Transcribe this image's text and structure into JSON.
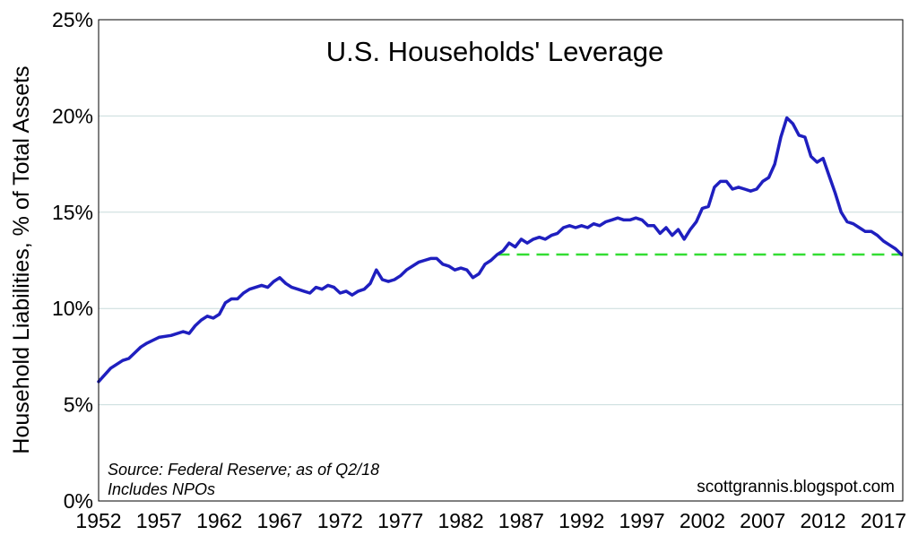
{
  "chart_data": {
    "type": "line",
    "title": "U.S. Households' Leverage",
    "ylabel": "Household Liabilities, % of Total Assets",
    "xlabel": "",
    "xlim": [
      1952,
      2018.6
    ],
    "ylim": [
      0,
      25
    ],
    "x_ticks": [
      1952,
      1957,
      1962,
      1967,
      1972,
      1977,
      1982,
      1987,
      1992,
      1997,
      2002,
      2007,
      2012,
      2017
    ],
    "x_tick_labels": [
      "1952",
      "1957",
      "1962",
      "1967",
      "1972",
      "1977",
      "1982",
      "1987",
      "1992",
      "1997",
      "2002",
      "2007",
      "2012",
      "2017"
    ],
    "y_ticks": [
      0,
      5,
      10,
      15,
      20,
      25
    ],
    "y_tick_labels": [
      "0%",
      "5%",
      "10%",
      "15%",
      "20%",
      "25%"
    ],
    "grid": "horizontal",
    "colors": {
      "series": "#1f1fbf",
      "reference": "#33dd33",
      "grid": "#c8dcdc"
    },
    "series": [
      {
        "x": [
          1952.0,
          1953.0,
          1954.0,
          1954.5,
          1955.0,
          1955.5,
          1956.0,
          1957.0,
          1958.0,
          1959.0,
          1959.5,
          1960.0,
          1960.5,
          1961.0,
          1961.5,
          1962.0,
          1962.5,
          1963.0,
          1963.5,
          1964.0,
          1964.5,
          1965.0,
          1965.5,
          1966.0,
          1966.5,
          1967.0,
          1967.5,
          1968.0,
          1968.5,
          1969.0,
          1969.5,
          1970.0,
          1970.5,
          1971.0,
          1971.5,
          1972.0,
          1972.5,
          1973.0,
          1973.5,
          1974.0,
          1974.5,
          1975.0,
          1975.5,
          1976.0,
          1976.5,
          1977.0,
          1977.5,
          1978.0,
          1978.5,
          1979.0,
          1979.5,
          1980.0,
          1980.5,
          1981.0,
          1981.5,
          1982.0,
          1982.5,
          1983.0,
          1983.5,
          1984.0,
          1984.5,
          1985.0,
          1985.5,
          1986.0,
          1986.5,
          1987.0,
          1987.5,
          1988.0,
          1988.5,
          1989.0,
          1989.5,
          1990.0,
          1990.5,
          1991.0,
          1991.5,
          1992.0,
          1992.5,
          1993.0,
          1993.5,
          1994.0,
          1994.5,
          1995.0,
          1995.5,
          1996.0,
          1996.5,
          1997.0,
          1997.5,
          1998.0,
          1998.5,
          1999.0,
          1999.5,
          2000.0,
          2000.5,
          2001.0,
          2001.5,
          2002.0,
          2002.5,
          2003.0,
          2003.5,
          2004.0,
          2004.5,
          2005.0,
          2005.5,
          2006.0,
          2006.5,
          2007.0,
          2007.5,
          2008.0,
          2008.5,
          2009.0,
          2009.5,
          2010.0,
          2010.5,
          2011.0,
          2011.5,
          2012.0,
          2012.5,
          2013.0,
          2013.5,
          2014.0,
          2014.5,
          2015.0,
          2015.5,
          2016.0,
          2016.5,
          2017.0,
          2017.5,
          2018.0,
          2018.5
        ],
        "values": [
          6.2,
          6.9,
          7.3,
          7.4,
          7.7,
          8.0,
          8.2,
          8.5,
          8.6,
          8.8,
          8.7,
          9.1,
          9.4,
          9.6,
          9.5,
          9.7,
          10.3,
          10.5,
          10.5,
          10.8,
          11.0,
          11.1,
          11.2,
          11.1,
          11.4,
          11.6,
          11.3,
          11.1,
          11.0,
          10.9,
          10.8,
          11.1,
          11.0,
          11.2,
          11.1,
          10.8,
          10.9,
          10.7,
          10.9,
          11.0,
          11.3,
          12.0,
          11.5,
          11.4,
          11.5,
          11.7,
          12.0,
          12.2,
          12.4,
          12.5,
          12.6,
          12.6,
          12.3,
          12.2,
          12.0,
          12.1,
          12.0,
          11.6,
          11.8,
          12.3,
          12.5,
          12.8,
          13.0,
          13.4,
          13.2,
          13.6,
          13.4,
          13.6,
          13.7,
          13.6,
          13.8,
          13.9,
          14.2,
          14.3,
          14.2,
          14.3,
          14.2,
          14.4,
          14.3,
          14.5,
          14.6,
          14.7,
          14.6,
          14.6,
          14.7,
          14.6,
          14.3,
          14.3,
          13.9,
          14.2,
          13.8,
          14.1,
          13.6,
          14.1,
          14.5,
          15.2,
          15.3,
          16.3,
          16.6,
          16.6,
          16.2,
          16.3,
          16.2,
          16.1,
          16.2,
          16.6,
          16.8,
          17.5,
          18.9,
          19.9,
          19.6,
          19.0,
          18.9,
          17.9,
          17.6,
          17.8,
          16.9,
          16.0,
          15.0,
          14.5,
          14.4,
          14.2,
          14.0,
          14.0,
          13.8,
          13.5,
          13.3,
          13.1,
          12.8
        ]
      }
    ],
    "reference_line": {
      "from_x": 1985.0,
      "to_x": 2018.6,
      "value": 12.8,
      "style": "dashed"
    },
    "annotations": [
      "Source: Federal Reserve; as of Q2/18",
      "Includes NPOs",
      "scottgrannis.blogspot.com"
    ]
  }
}
